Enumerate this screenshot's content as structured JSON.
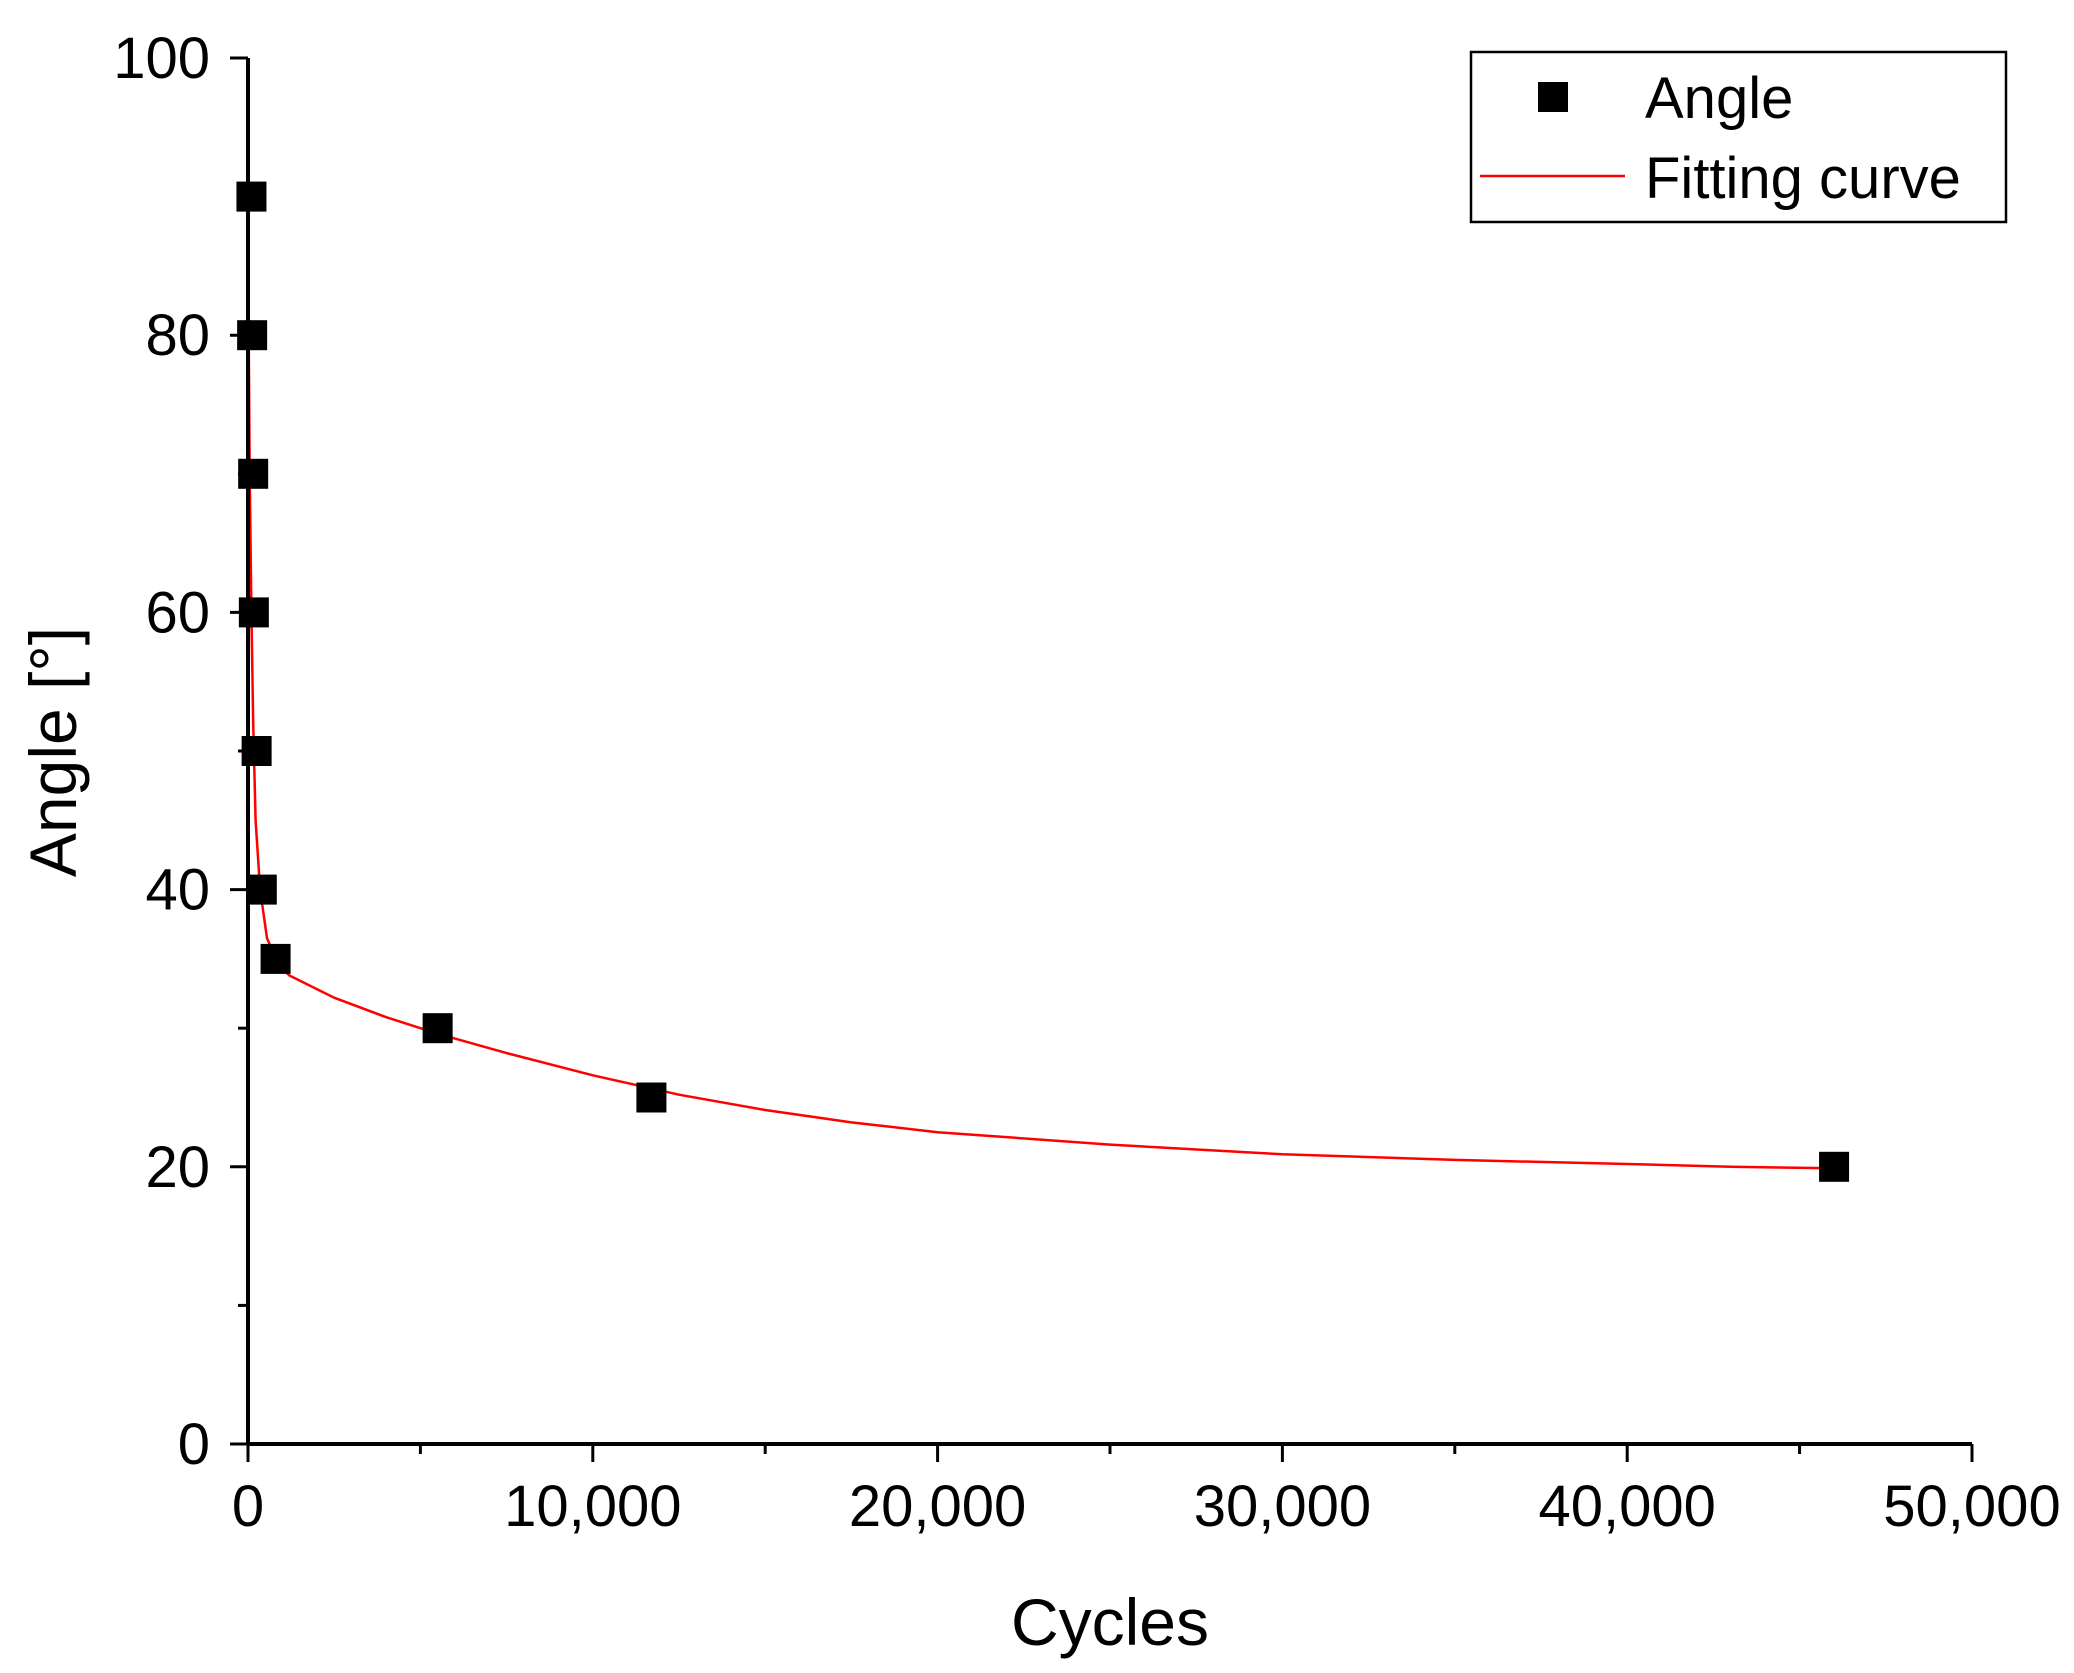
{
  "chart_data": {
    "type": "scatter",
    "xlabel": "Cycles",
    "ylabel": "Angle [°]",
    "xlim": [
      0,
      50000
    ],
    "ylim": [
      0,
      100
    ],
    "x_ticks": [
      0,
      10000,
      20000,
      30000,
      40000,
      50000
    ],
    "x_tick_labels": [
      "0",
      "10,000",
      "20,000",
      "30,000",
      "40,000",
      "50,000"
    ],
    "y_ticks": [
      0,
      20,
      40,
      60,
      80,
      100
    ],
    "y_tick_labels": [
      "0",
      "20",
      "40",
      "60",
      "80",
      "100"
    ],
    "grid": false,
    "legend_position": "top-right",
    "series": [
      {
        "name": "Angle",
        "kind": "scatter",
        "marker": "square",
        "color": "#000000",
        "points": [
          {
            "x": 100,
            "y": 90
          },
          {
            "x": 120,
            "y": 80
          },
          {
            "x": 150,
            "y": 70
          },
          {
            "x": 170,
            "y": 60
          },
          {
            "x": 250,
            "y": 50
          },
          {
            "x": 400,
            "y": 40
          },
          {
            "x": 800,
            "y": 35
          },
          {
            "x": 5500,
            "y": 30
          },
          {
            "x": 11700,
            "y": 25
          },
          {
            "x": 46000,
            "y": 20
          }
        ]
      },
      {
        "name": "Fitting curve",
        "kind": "line",
        "color": "#ff0000",
        "points": [
          {
            "x": 0,
            "y": 92
          },
          {
            "x": 20,
            "y": 80
          },
          {
            "x": 50,
            "y": 70
          },
          {
            "x": 100,
            "y": 60
          },
          {
            "x": 150,
            "y": 52
          },
          {
            "x": 220,
            "y": 45
          },
          {
            "x": 350,
            "y": 40
          },
          {
            "x": 550,
            "y": 36.5
          },
          {
            "x": 900,
            "y": 34.5
          },
          {
            "x": 1200,
            "y": 33.8
          },
          {
            "x": 2500,
            "y": 32.2
          },
          {
            "x": 4000,
            "y": 30.8
          },
          {
            "x": 5500,
            "y": 29.6
          },
          {
            "x": 7500,
            "y": 28.2
          },
          {
            "x": 10000,
            "y": 26.6
          },
          {
            "x": 12500,
            "y": 25.2
          },
          {
            "x": 15000,
            "y": 24.1
          },
          {
            "x": 17500,
            "y": 23.2
          },
          {
            "x": 20000,
            "y": 22.5
          },
          {
            "x": 25000,
            "y": 21.6
          },
          {
            "x": 30000,
            "y": 20.9
          },
          {
            "x": 35000,
            "y": 20.5
          },
          {
            "x": 40000,
            "y": 20.2
          },
          {
            "x": 43000,
            "y": 20.0
          },
          {
            "x": 46000,
            "y": 19.9
          }
        ]
      }
    ]
  }
}
